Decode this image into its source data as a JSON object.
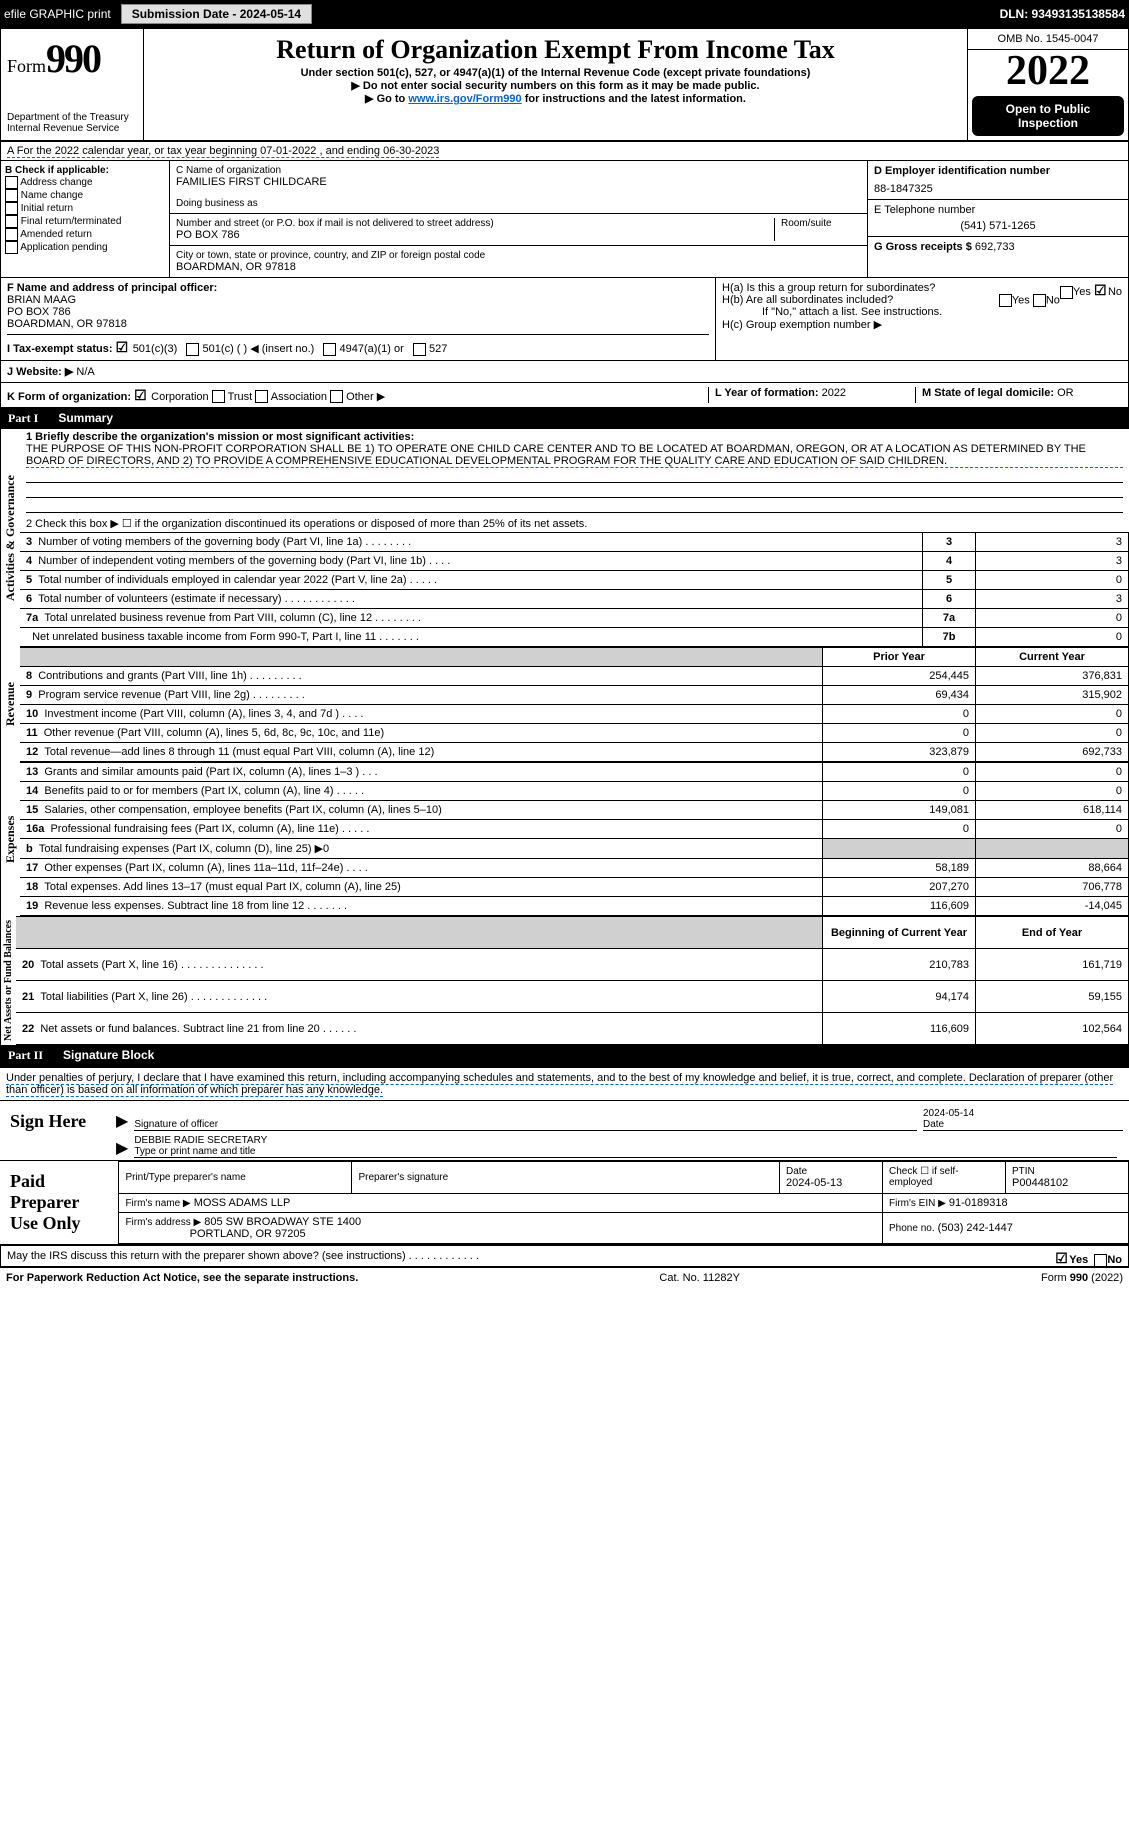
{
  "top_bar": {
    "efile": "efile GRAPHIC print",
    "submission": "Submission Date - 2024-05-14",
    "dln": "DLN: 93493135138584"
  },
  "header": {
    "form_label": "Form",
    "form_num": "990",
    "dept": "Department of the Treasury Internal Revenue Service",
    "title": "Return of Organization Exempt From Income Tax",
    "sub1": "Under section 501(c), 527, or 4947(a)(1) of the Internal Revenue Code (except private foundations)",
    "sub2": "▶ Do not enter social security numbers on this form as it may be made public.",
    "sub3_pre": "▶ Go to ",
    "sub3_link": "www.irs.gov/Form990",
    "sub3_post": " for instructions and the latest information.",
    "omb": "OMB No. 1545-0047",
    "year": "2022",
    "public": "Open to Public Inspection"
  },
  "row_a": "A For the 2022 calendar year, or tax year beginning 07-01-2022   , and ending 06-30-2023",
  "col_b": {
    "title": "B Check if applicable:",
    "items": [
      "Address change",
      "Name change",
      "Initial return",
      "Final return/terminated",
      "Amended return",
      "Application pending"
    ]
  },
  "col_c": {
    "name_label": "C Name of organization",
    "name": "FAMILIES FIRST CHILDCARE",
    "dba_label": "Doing business as",
    "street_label": "Number and street (or P.O. box if mail is not delivered to street address)",
    "room_label": "Room/suite",
    "street": "PO BOX 786",
    "city_label": "City or town, state or province, country, and ZIP or foreign postal code",
    "city": "BOARDMAN, OR  97818"
  },
  "col_d": {
    "ein_label": "D Employer identification number",
    "ein": "88-1847325",
    "phone_label": "E Telephone number",
    "phone": "(541) 571-1265",
    "gross_label": "G Gross receipts $",
    "gross": "692,733"
  },
  "col_f": {
    "label": "F Name and address of principal officer:",
    "name": "BRIAN MAAG",
    "street": "PO BOX 786",
    "city": "BOARDMAN, OR  97818"
  },
  "col_h": {
    "a": "H(a)  Is this a group return for subordinates?",
    "b": "H(b)  Are all subordinates included?",
    "note": "If \"No,\" attach a list. See instructions.",
    "c": "H(c)  Group exemption number ▶",
    "yes": "Yes",
    "no": "No"
  },
  "row_i": "I  Tax-exempt status:",
  "row_i_opts": [
    "501(c)(3)",
    "501(c) (  ) ◀ (insert no.)",
    "4947(a)(1) or",
    "527"
  ],
  "row_j": {
    "label": "J  Website: ▶",
    "val": "N/A"
  },
  "row_k": "K Form of organization:",
  "row_k_opts": [
    "Corporation",
    "Trust",
    "Association",
    "Other ▶"
  ],
  "row_l": {
    "label": "L Year of formation:",
    "val": "2022"
  },
  "row_m": {
    "label": "M State of legal domicile:",
    "val": "OR"
  },
  "part1": {
    "num": "Part I",
    "title": "Summary"
  },
  "summary": {
    "q1_label": "1  Briefly describe the organization's mission or most significant activities:",
    "q1_text": "THE PURPOSE OF THIS NON-PROFIT CORPORATION SHALL BE 1) TO OPERATE ONE CHILD CARE CENTER AND TO BE LOCATED AT BOARDMAN, OREGON, OR AT A LOCATION AS DETERMINED BY THE BOARD OF DIRECTORS, AND 2) TO PROVIDE A COMPREHENSIVE EDUCATIONAL DEVELOPMENTAL PROGRAM FOR THE QUALITY CARE AND EDUCATION OF SAID CHILDREN.",
    "q2": "2   Check this box ▶ ☐  if the organization discontinued its operations or disposed of more than 25% of its net assets.",
    "rows_simple": [
      {
        "n": "3",
        "label": "Number of voting members of the governing body (Part VI, line 1a)  .   .   .   .   .   .   .   .",
        "box": "3",
        "val": "3"
      },
      {
        "n": "4",
        "label": "Number of independent voting members of the governing body (Part VI, line 1b)   .   .   .   .",
        "box": "4",
        "val": "3"
      },
      {
        "n": "5",
        "label": "Total number of individuals employed in calendar year 2022 (Part V, line 2a)   .   .   .   .   .",
        "box": "5",
        "val": "0"
      },
      {
        "n": "6",
        "label": "Total number of volunteers (estimate if necessary)    .   .   .   .   .   .   .   .   .   .   .   .",
        "box": "6",
        "val": "3"
      },
      {
        "n": "7a",
        "label": "Total unrelated business revenue from Part VIII, column (C), line 12  .   .   .   .   .   .   .   .",
        "box": "7a",
        "val": "0"
      },
      {
        "n": "",
        "label": "Net unrelated business taxable income from Form 990-T, Part I, line 11   .   .   .   .   .   .   .",
        "box": "7b",
        "val": "0"
      }
    ],
    "col_prior": "Prior Year",
    "col_current": "Current Year",
    "side_act": "Activities & Governance",
    "side_rev": "Revenue",
    "side_exp": "Expenses",
    "side_net": "Net Assets or Fund Balances",
    "revenue": [
      {
        "n": "8",
        "label": "Contributions and grants (Part VIII, line 1h)   .   .   .   .   .   .   .   .   .",
        "prior": "254,445",
        "cur": "376,831"
      },
      {
        "n": "9",
        "label": "Program service revenue (Part VIII, line 2g)  .   .   .   .   .   .   .   .   .",
        "prior": "69,434",
        "cur": "315,902"
      },
      {
        "n": "10",
        "label": "Investment income (Part VIII, column (A), lines 3, 4, and 7d )  .   .   .   .",
        "prior": "0",
        "cur": "0"
      },
      {
        "n": "11",
        "label": "Other revenue (Part VIII, column (A), lines 5, 6d, 8c, 9c, 10c, and 11e)",
        "prior": "0",
        "cur": "0"
      },
      {
        "n": "12",
        "label": "Total revenue—add lines 8 through 11 (must equal Part VIII, column (A), line 12)",
        "prior": "323,879",
        "cur": "692,733"
      }
    ],
    "expenses": [
      {
        "n": "13",
        "label": "Grants and similar amounts paid (Part IX, column (A), lines 1–3 )   .   .   .",
        "prior": "0",
        "cur": "0"
      },
      {
        "n": "14",
        "label": "Benefits paid to or for members (Part IX, column (A), line 4)  .   .   .   .   .",
        "prior": "0",
        "cur": "0"
      },
      {
        "n": "15",
        "label": "Salaries, other compensation, employee benefits (Part IX, column (A), lines 5–10)",
        "prior": "149,081",
        "cur": "618,114"
      },
      {
        "n": "16a",
        "label": "Professional fundraising fees (Part IX, column (A), line 11e)  .   .   .   .   .",
        "prior": "0",
        "cur": "0"
      },
      {
        "n": "b",
        "label": "Total fundraising expenses (Part IX, column (D), line 25) ▶0",
        "prior": "gray",
        "cur": "gray"
      },
      {
        "n": "17",
        "label": "Other expenses (Part IX, column (A), lines 11a–11d, 11f–24e)   .   .   .   .",
        "prior": "58,189",
        "cur": "88,664"
      },
      {
        "n": "18",
        "label": "Total expenses. Add lines 13–17 (must equal Part IX, column (A), line 25)",
        "prior": "207,270",
        "cur": "706,778"
      },
      {
        "n": "19",
        "label": "Revenue less expenses. Subtract line 18 from line 12  .   .   .   .   .   .   .",
        "prior": "116,609",
        "cur": "-14,045"
      }
    ],
    "col_begin": "Beginning of Current Year",
    "col_end": "End of Year",
    "net": [
      {
        "n": "20",
        "label": "Total assets (Part X, line 16)  .   .   .   .   .   .   .   .   .   .   .   .   .   .",
        "prior": "210,783",
        "cur": "161,719"
      },
      {
        "n": "21",
        "label": "Total liabilities (Part X, line 26)   .   .   .   .   .   .   .   .   .   .   .   .   .",
        "prior": "94,174",
        "cur": "59,155"
      },
      {
        "n": "22",
        "label": "Net assets or fund balances. Subtract line 21 from line 20   .   .   .   .   .   .",
        "prior": "116,609",
        "cur": "102,564"
      }
    ]
  },
  "part2": {
    "num": "Part II",
    "title": "Signature Block"
  },
  "penalty": "Under penalties of perjury, I declare that I have examined this return, including accompanying schedules and statements, and to the best of my knowledge and belief, it is true, correct, and complete. Declaration of preparer (other than officer) is based on all information of which preparer has any knowledge.",
  "sign": {
    "label": "Sign Here",
    "sig_officer": "Signature of officer",
    "date": "Date",
    "date_val": "2024-05-14",
    "name": "DEBBIE RADIE SECRETARY",
    "type_label": "Type or print name and title"
  },
  "preparer": {
    "label": "Paid Preparer Use Only",
    "print_label": "Print/Type preparer's name",
    "sig_label": "Preparer's signature",
    "date_label": "Date",
    "date_val": "2024-05-13",
    "check_label": "Check ☐ if self-employed",
    "ptin_label": "PTIN",
    "ptin": "P00448102",
    "firm_name_label": "Firm's name    ▶",
    "firm_name": "MOSS ADAMS LLP",
    "firm_ein_label": "Firm's EIN ▶",
    "firm_ein": "91-0189318",
    "firm_addr_label": "Firm's address ▶",
    "firm_addr1": "805 SW BROADWAY STE 1400",
    "firm_addr2": "PORTLAND, OR  97205",
    "firm_phone_label": "Phone no.",
    "firm_phone": "(503) 242-1447"
  },
  "discuss": "May the IRS discuss this return with the preparer shown above? (see instructions)   .   .   .   .   .   .   .   .   .   .   .   .",
  "footer": {
    "left": "For Paperwork Reduction Act Notice, see the separate instructions.",
    "mid": "Cat. No. 11282Y",
    "right": "Form 990 (2022)"
  }
}
